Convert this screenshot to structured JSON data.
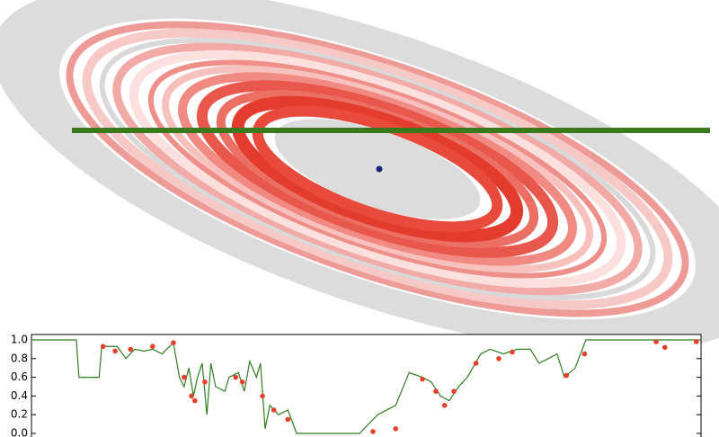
{
  "chart_data": {
    "type": "line",
    "color": "#2e7d1e",
    "x": [
      0,
      6.7,
      7.1,
      10.1,
      10.5,
      12.8,
      14.1,
      15.4,
      16.8,
      18.1,
      19.5,
      21.2,
      22.1,
      22.8,
      23.5,
      24.2,
      24.8,
      25.5,
      26.2,
      26.8,
      27.5,
      28.9,
      29.5,
      30.9,
      31.8,
      32.6,
      33.6,
      34.2,
      34.9,
      35.6,
      36.9,
      38.3,
      39.6,
      49.0,
      51.7,
      54.4,
      56.4,
      58.4,
      59.7,
      61.1,
      62.4,
      63.8,
      65.1,
      67.1,
      68.5,
      70.5,
      72.5,
      74.5,
      75.8,
      77.2,
      78.5,
      79.6,
      81.2,
      82.8,
      100
    ],
    "values": [
      1.0,
      1.0,
      0.6,
      0.6,
      0.93,
      0.93,
      0.8,
      0.9,
      0.88,
      0.9,
      0.85,
      0.97,
      0.6,
      0.5,
      0.7,
      0.4,
      0.6,
      0.75,
      0.2,
      0.75,
      0.5,
      0.45,
      0.6,
      0.65,
      0.45,
      0.77,
      0.6,
      0.75,
      0.05,
      0.3,
      0.2,
      0.25,
      0.0,
      0.0,
      0.2,
      0.3,
      0.65,
      0.6,
      0.55,
      0.4,
      0.35,
      0.5,
      0.6,
      0.85,
      0.9,
      0.85,
      0.9,
      0.9,
      0.75,
      0.8,
      0.85,
      0.6,
      0.7,
      1.0,
      1.0
    ],
    "points": {
      "type": "scatter",
      "color": "#e8402a",
      "x": [
        10.7,
        12.5,
        14.8,
        18.1,
        21.2,
        22.8,
        23.9,
        24.4,
        25.9,
        30.5,
        31.5,
        34.5,
        36.2,
        38.3,
        51.0,
        54.4,
        58.4,
        60.4,
        61.7,
        63.1,
        66.4,
        69.8,
        71.8,
        79.9,
        82.6,
        93.3,
        94.6,
        99.3
      ],
      "values": [
        0.93,
        0.88,
        0.9,
        0.93,
        0.97,
        0.6,
        0.4,
        0.35,
        0.55,
        0.6,
        0.55,
        0.4,
        0.25,
        0.15,
        0.02,
        0.05,
        0.58,
        0.45,
        0.3,
        0.45,
        0.75,
        0.8,
        0.87,
        0.62,
        0.85,
        0.98,
        0.92,
        0.98
      ]
    },
    "xlim": [
      0,
      100
    ],
    "ylim": [
      0,
      1.0
    ],
    "yticks": [
      {
        "value": 0,
        "label": "0.0"
      },
      {
        "value": 0.2,
        "label": "0.2"
      },
      {
        "value": 0.4,
        "label": "0.4"
      },
      {
        "value": 0.6,
        "label": "0.6"
      },
      {
        "value": 0.8,
        "label": "0.8"
      },
      {
        "value": 1.0,
        "label": "1.0"
      }
    ]
  }
}
